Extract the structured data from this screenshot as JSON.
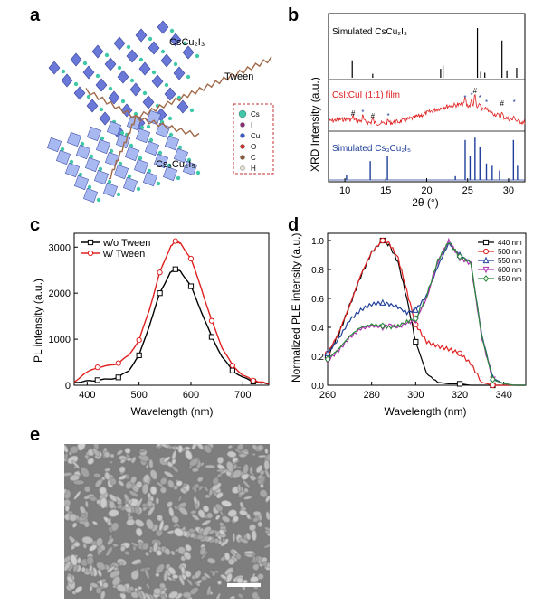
{
  "panels": {
    "a": {
      "letter": "a",
      "label_top": "CsCu₂I₃",
      "label_tween": "Tween",
      "label_bottom": "Cs₃Cu₂I₅",
      "legend": [
        "Cs",
        "I",
        "Cu",
        "O",
        "C",
        "H"
      ],
      "legend_colors": [
        "#40c8a8",
        "#8a2c7a",
        "#3a5bd0",
        "#d03030",
        "#8a5a3a",
        "#e8e0d0"
      ]
    },
    "b": {
      "letter": "b",
      "ylabel": "XRD Intensity (a.u.)",
      "xlabel": "2θ (°)",
      "traces": [
        {
          "name": "Simulated CsCu₂I₃",
          "color": "#000000"
        },
        {
          "name": "CsI:CuI (1:1) film",
          "color": "#e02020"
        },
        {
          "name": "Simulated Cs₃Cu₂I₅",
          "color": "#1f3f9a"
        }
      ]
    },
    "c": {
      "letter": "c"
    },
    "d": {
      "letter": "d"
    },
    "e": {
      "letter": "e"
    }
  },
  "chart_data": [
    {
      "type": "line",
      "panel": "b",
      "title": "",
      "xlabel": "2θ (°)",
      "ylabel": "XRD Intensity (a.u.)",
      "xlim": [
        8,
        32
      ],
      "xticks": [
        10,
        15,
        20,
        25,
        30
      ],
      "sticks_top": {
        "name": "Simulated CsCu₂I₃",
        "x": [
          10.9,
          13.4,
          21.7,
          22.0,
          26.2,
          26.6,
          27.1,
          29.2,
          29.8,
          31.0
        ],
        "y": [
          0.35,
          0.08,
          0.18,
          0.25,
          1.0,
          0.12,
          0.1,
          0.75,
          0.15,
          0.2
        ]
      },
      "film": {
        "name": "CsI:CuI (1:1) film",
        "markers_hash": [
          "#",
          "#",
          "#",
          "#"
        ],
        "markers_star": [
          "*",
          "*",
          "*",
          "*",
          "*",
          "*"
        ]
      },
      "sticks_bottom": {
        "name": "Simulated Cs₃Cu₂I₅",
        "x": [
          10.2,
          13.1,
          15.2,
          23.5,
          24.7,
          25.3,
          25.9,
          26.5,
          27.3,
          28.0,
          28.9,
          30.6,
          31.1
        ],
        "y": [
          0.1,
          0.4,
          0.5,
          0.08,
          0.85,
          0.5,
          0.9,
          0.7,
          0.35,
          0.3,
          0.2,
          0.85,
          0.3
        ]
      }
    },
    {
      "type": "line",
      "panel": "c",
      "xlabel": "Wavelength (nm)",
      "ylabel": "PL intensity (a.u.)",
      "xlim": [
        375,
        750
      ],
      "ylim": [
        0,
        3300
      ],
      "xticks": [
        400,
        500,
        600,
        700
      ],
      "yticks": [
        0,
        1000,
        2000,
        3000
      ],
      "x": [
        375,
        400,
        420,
        440,
        460,
        480,
        500,
        520,
        540,
        560,
        570,
        580,
        600,
        620,
        640,
        660,
        680,
        700,
        720,
        750
      ],
      "series": [
        {
          "name": "w/o Tween",
          "color": "#000000",
          "marker": "square",
          "values": [
            60,
            90,
            110,
            130,
            170,
            320,
            650,
            1300,
            2000,
            2450,
            2520,
            2480,
            2150,
            1600,
            1050,
            620,
            320,
            170,
            80,
            30
          ]
        },
        {
          "name": "w/   Tween",
          "color": "#e02020",
          "marker": "circle",
          "values": [
            80,
            280,
            390,
            420,
            480,
            650,
            980,
            1650,
            2450,
            3000,
            3130,
            3080,
            2750,
            2100,
            1400,
            820,
            430,
            220,
            100,
            40
          ]
        }
      ],
      "legend": "top-left"
    },
    {
      "type": "line",
      "panel": "d",
      "xlabel": "Wavelength (nm)",
      "ylabel": "Normalized PLE intensity (a.u.)",
      "xlim": [
        260,
        350
      ],
      "ylim": [
        0,
        1.05
      ],
      "xticks": [
        260,
        280,
        300,
        320,
        340
      ],
      "yticks": [
        0.0,
        0.2,
        0.4,
        0.6,
        0.8,
        1.0
      ],
      "x": [
        260,
        265,
        270,
        275,
        280,
        285,
        288,
        292,
        296,
        300,
        305,
        310,
        315,
        320,
        325,
        330,
        335,
        340,
        345,
        350
      ],
      "series": [
        {
          "name": "440 nm",
          "color": "#000000",
          "marker": "square",
          "values": [
            0.2,
            0.35,
            0.55,
            0.75,
            0.92,
            1.0,
            0.97,
            0.85,
            0.6,
            0.3,
            0.08,
            0.02,
            0.01,
            0.01,
            0.0,
            0.0,
            0.0,
            0.0,
            0.0,
            0.0
          ]
        },
        {
          "name": "500 nm",
          "color": "#e02020",
          "marker": "circle",
          "values": [
            0.22,
            0.36,
            0.55,
            0.76,
            0.92,
            1.0,
            0.98,
            0.88,
            0.65,
            0.42,
            0.3,
            0.27,
            0.25,
            0.22,
            0.15,
            0.02,
            0.0,
            0.0,
            0.0,
            0.0
          ]
        },
        {
          "name": "550 nm",
          "color": "#1f3f9a",
          "marker": "triangle-up",
          "values": [
            0.22,
            0.32,
            0.45,
            0.52,
            0.56,
            0.57,
            0.56,
            0.54,
            0.5,
            0.52,
            0.62,
            0.82,
            0.98,
            0.9,
            0.85,
            0.35,
            0.05,
            0.01,
            0.0,
            0.0
          ]
        },
        {
          "name": "600 nm",
          "color": "#b030b0",
          "marker": "triangle-down",
          "values": [
            0.17,
            0.24,
            0.33,
            0.39,
            0.41,
            0.4,
            0.42,
            0.4,
            0.43,
            0.45,
            0.6,
            0.85,
            1.0,
            0.88,
            0.84,
            0.33,
            0.04,
            0.01,
            0.0,
            0.0
          ]
        },
        {
          "name": "650 nm",
          "color": "#2a8a3a",
          "marker": "diamond",
          "values": [
            0.18,
            0.25,
            0.34,
            0.4,
            0.42,
            0.41,
            0.4,
            0.41,
            0.44,
            0.46,
            0.62,
            0.86,
            0.99,
            0.89,
            0.85,
            0.34,
            0.04,
            0.01,
            0.0,
            0.0
          ]
        }
      ],
      "legend": "top-right"
    }
  ]
}
